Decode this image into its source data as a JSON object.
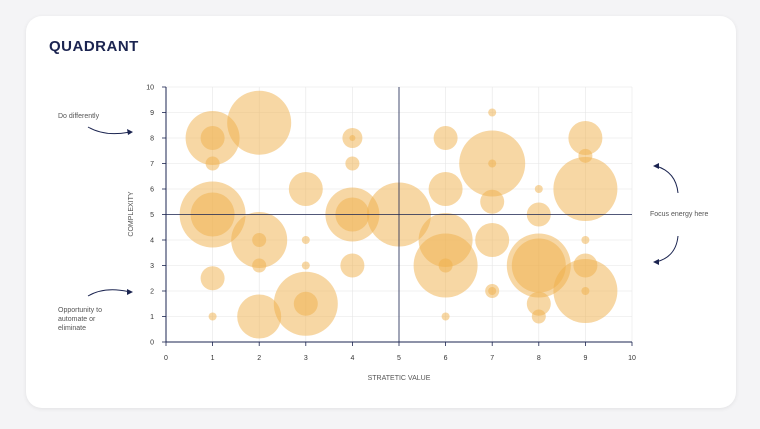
{
  "title": "QUADRANT",
  "annotations": {
    "top_left": "Do differently",
    "bottom_left": "Opportunity to automate or eliminate",
    "right": "Focus energy here"
  },
  "colors": {
    "bubble": "#f0b04a",
    "axis": "#1b2450",
    "grid": "#e6e6e6"
  },
  "chart_data": {
    "type": "bubble",
    "title": "",
    "xlabel": "STRATETIC VALUE",
    "ylabel": "COMPLEXITY",
    "xlim": [
      0,
      10
    ],
    "ylim": [
      0,
      10
    ],
    "xticks": [
      0,
      1,
      2,
      3,
      4,
      5,
      6,
      7,
      8,
      9,
      10
    ],
    "yticks": [
      0,
      1,
      2,
      3,
      4,
      5,
      6,
      7,
      8,
      9,
      10
    ],
    "grid": true,
    "quadrant_lines": {
      "x": 5,
      "y": 5
    },
    "points": [
      {
        "x": 1,
        "y": 8,
        "size": 27
      },
      {
        "x": 1,
        "y": 8,
        "size": 12
      },
      {
        "x": 1,
        "y": 7,
        "size": 7
      },
      {
        "x": 2,
        "y": 8.6,
        "size": 32
      },
      {
        "x": 4,
        "y": 8,
        "size": 10
      },
      {
        "x": 4,
        "y": 8,
        "size": 3
      },
      {
        "x": 4,
        "y": 7,
        "size": 7
      },
      {
        "x": 1,
        "y": 5,
        "size": 33
      },
      {
        "x": 1,
        "y": 5,
        "size": 22
      },
      {
        "x": 2,
        "y": 4,
        "size": 28
      },
      {
        "x": 2,
        "y": 4,
        "size": 7
      },
      {
        "x": 2,
        "y": 3,
        "size": 7
      },
      {
        "x": 3,
        "y": 6,
        "size": 17
      },
      {
        "x": 3,
        "y": 4,
        "size": 4
      },
      {
        "x": 3,
        "y": 3,
        "size": 4
      },
      {
        "x": 4,
        "y": 5,
        "size": 27
      },
      {
        "x": 4,
        "y": 5,
        "size": 17
      },
      {
        "x": 5,
        "y": 5,
        "size": 32
      },
      {
        "x": 4,
        "y": 3,
        "size": 12
      },
      {
        "x": 1,
        "y": 2.5,
        "size": 12
      },
      {
        "x": 1,
        "y": 1,
        "size": 4
      },
      {
        "x": 2,
        "y": 1,
        "size": 22
      },
      {
        "x": 3,
        "y": 1.5,
        "size": 32
      },
      {
        "x": 3,
        "y": 1.5,
        "size": 12
      },
      {
        "x": 6,
        "y": 8,
        "size": 12
      },
      {
        "x": 7,
        "y": 9,
        "size": 4
      },
      {
        "x": 7,
        "y": 7,
        "size": 33
      },
      {
        "x": 7,
        "y": 7,
        "size": 4
      },
      {
        "x": 9,
        "y": 8,
        "size": 17
      },
      {
        "x": 9,
        "y": 7.3,
        "size": 7
      },
      {
        "x": 6,
        "y": 6,
        "size": 17
      },
      {
        "x": 7,
        "y": 5.5,
        "size": 12
      },
      {
        "x": 8,
        "y": 6,
        "size": 4
      },
      {
        "x": 9,
        "y": 6,
        "size": 32
      },
      {
        "x": 8,
        "y": 5,
        "size": 12
      },
      {
        "x": 6,
        "y": 4,
        "size": 27
      },
      {
        "x": 6,
        "y": 3,
        "size": 32
      },
      {
        "x": 6,
        "y": 3,
        "size": 7
      },
      {
        "x": 7,
        "y": 4,
        "size": 17
      },
      {
        "x": 8,
        "y": 3,
        "size": 32
      },
      {
        "x": 8,
        "y": 3,
        "size": 27
      },
      {
        "x": 9,
        "y": 4,
        "size": 4
      },
      {
        "x": 9,
        "y": 3,
        "size": 12
      },
      {
        "x": 9,
        "y": 2,
        "size": 32
      },
      {
        "x": 9,
        "y": 2,
        "size": 4
      },
      {
        "x": 7,
        "y": 2,
        "size": 7
      },
      {
        "x": 7,
        "y": 2,
        "size": 4
      },
      {
        "x": 8,
        "y": 1.5,
        "size": 12
      },
      {
        "x": 8,
        "y": 1,
        "size": 7
      },
      {
        "x": 6,
        "y": 1,
        "size": 4
      }
    ]
  }
}
